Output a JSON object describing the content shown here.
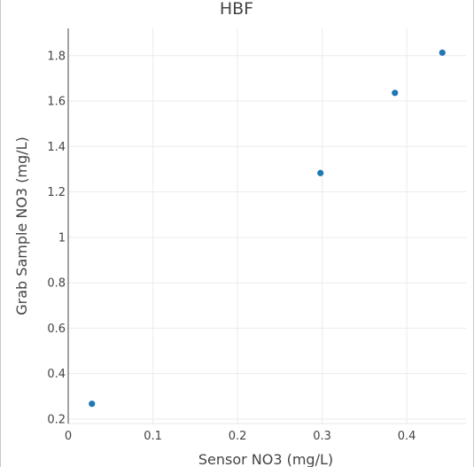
{
  "chart_data": {
    "type": "scatter",
    "title": "HBF",
    "xlabel": "Sensor NO3 (mg/L)",
    "ylabel": "Grab Sample NO3 (mg/L)",
    "xlim": [
      0,
      0.47
    ],
    "ylim": [
      0.18,
      1.92
    ],
    "x_ticks": [
      0,
      0.1,
      0.2,
      0.3,
      0.4
    ],
    "x_tick_labels": [
      "0",
      "0.1",
      "0.2",
      "0.3",
      "0.4"
    ],
    "y_ticks": [
      0.2,
      0.4,
      0.6,
      0.8,
      1.0,
      1.2,
      1.4,
      1.6,
      1.8
    ],
    "y_tick_labels": [
      "0.2",
      "0.4",
      "0.6",
      "0.8",
      "1",
      "1.2",
      "1.4",
      "1.6",
      "1.8"
    ],
    "grid": true,
    "legend": "none",
    "marker_color": "#1f77b4",
    "points": [
      {
        "x": 0.028,
        "y": 0.267
      },
      {
        "x": 0.298,
        "y": 1.283
      },
      {
        "x": 0.386,
        "y": 1.636
      },
      {
        "x": 0.442,
        "y": 1.813
      }
    ]
  }
}
